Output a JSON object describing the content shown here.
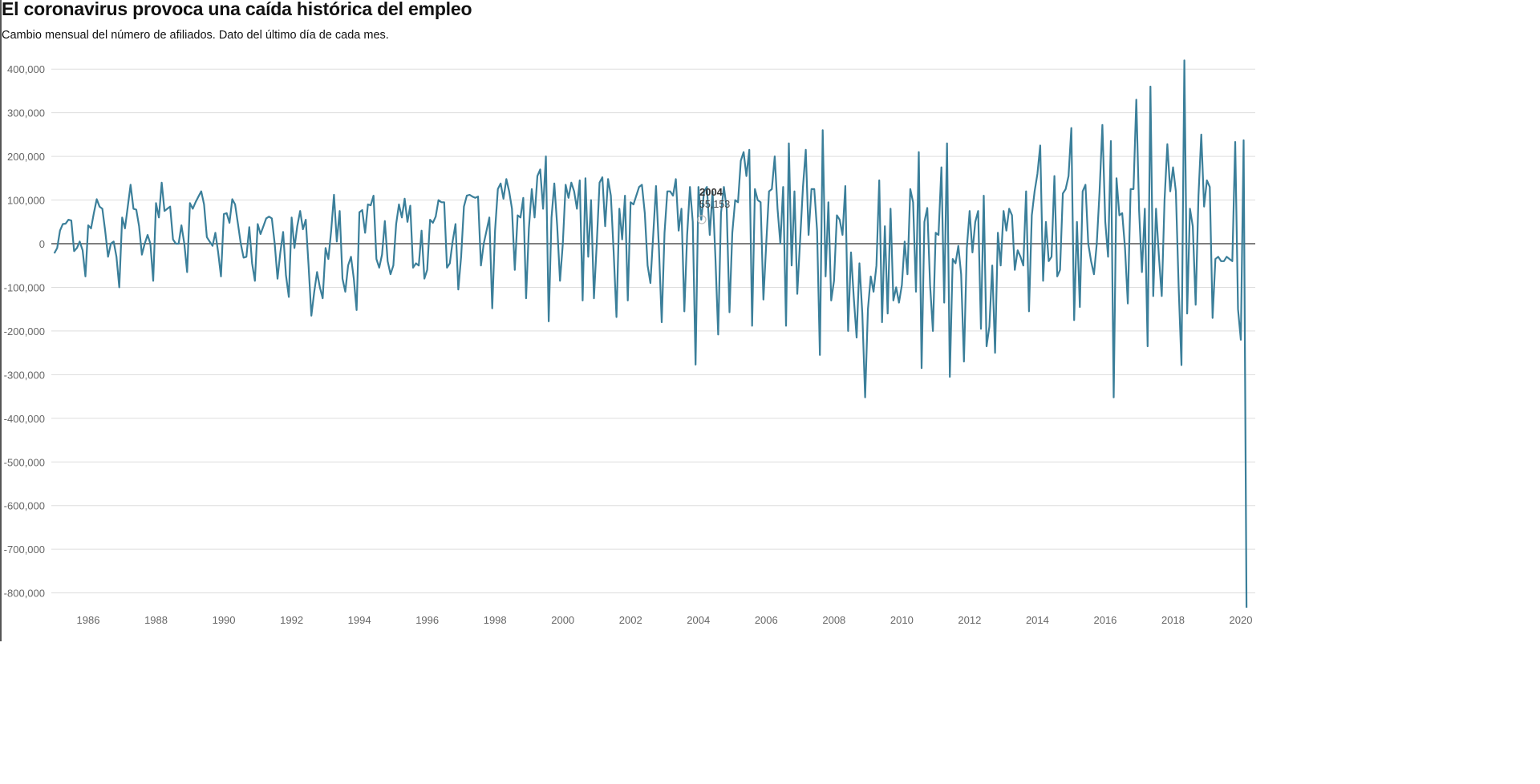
{
  "chart_data": {
    "type": "line",
    "title": "El coronavirus provoca una caída histórica del empleo",
    "subtitle": "Cambio mensual del número de afiliados. Dato del último día de cada mes.",
    "xlabel": "",
    "ylabel": "",
    "x_start": "1985-01",
    "x_frequency": "monthly",
    "xlim": [
      1985,
      2020.2
    ],
    "ylim": [
      -850000,
      430000
    ],
    "grid": true,
    "line_color": "#3b7f9a",
    "x_ticks": [
      "1986",
      "1988",
      "1990",
      "1992",
      "1994",
      "1996",
      "1998",
      "2000",
      "2002",
      "2004",
      "2006",
      "2008",
      "2010",
      "2012",
      "2014",
      "2016",
      "2018",
      "2020"
    ],
    "y_ticks": [
      "400,000",
      "300,000",
      "200,000",
      "100,000",
      "0",
      "-100,000",
      "-200,000",
      "-300,000",
      "-400,000",
      "-500,000",
      "-600,000",
      "-700,000",
      "-800,000"
    ],
    "tooltip": {
      "year": "2004",
      "value": "55,153"
    },
    "series": [
      {
        "values_thousands": [
          -22,
          -10,
          30,
          45,
          46,
          55,
          53,
          -17,
          -10,
          5,
          -15,
          -75,
          42,
          35,
          70,
          102,
          85,
          80,
          30,
          -30,
          0,
          5,
          -30,
          -100,
          60,
          35,
          85,
          135,
          80,
          78,
          40,
          -25,
          0,
          20,
          0,
          -85,
          93,
          60,
          140,
          75,
          80,
          85,
          10,
          0,
          0,
          42,
          0,
          -65,
          93,
          80,
          95,
          108,
          120,
          90,
          15,
          5,
          -5,
          25,
          -20,
          -75,
          68,
          70,
          48,
          102,
          90,
          45,
          0,
          -32,
          -30,
          38,
          -45,
          -85,
          45,
          22,
          40,
          58,
          62,
          58,
          0,
          -80,
          -20,
          27,
          -72,
          -122,
          60,
          -10,
          40,
          75,
          33,
          55,
          -50,
          -165,
          -110,
          -65,
          -100,
          -125,
          -10,
          -35,
          30,
          112,
          5,
          75,
          -80,
          -110,
          -50,
          -30,
          -80,
          -152,
          72,
          77,
          25,
          90,
          88,
          110,
          -35,
          -55,
          -25,
          52,
          -40,
          -70,
          -50,
          45,
          90,
          60,
          103,
          50,
          87,
          -55,
          -45,
          -50,
          30,
          -80,
          -60,
          55,
          48,
          62,
          100,
          95,
          95,
          -55,
          -45,
          5,
          45,
          -105,
          -30,
          85,
          110,
          112,
          108,
          105,
          108,
          -50,
          0,
          30,
          60,
          -148,
          30,
          125,
          138,
          103,
          148,
          120,
          80,
          -60,
          65,
          60,
          105,
          -125,
          35,
          125,
          60,
          155,
          170,
          80,
          200,
          -178,
          60,
          138,
          40,
          -85,
          0,
          135,
          105,
          140,
          120,
          80,
          145,
          -130,
          150,
          -30,
          100,
          -125,
          0,
          140,
          152,
          40,
          148,
          110,
          -20,
          -168,
          80,
          10,
          110,
          -130,
          95,
          90,
          110,
          130,
          135,
          70,
          -50,
          -90,
          20,
          132,
          -10,
          -180,
          25,
          120,
          120,
          110,
          148,
          30,
          80,
          -155,
          20,
          130,
          50,
          -277,
          130,
          55,
          120,
          130,
          20,
          120,
          -30,
          -208,
          70,
          130,
          80,
          -157,
          25,
          100,
          95,
          190,
          210,
          155,
          215,
          -188,
          125,
          100,
          95,
          -128,
          0,
          120,
          125,
          200,
          80,
          0,
          130,
          -188,
          230,
          -50,
          120,
          -115,
          10,
          130,
          215,
          20,
          125,
          125,
          30,
          -255,
          260,
          -75,
          95,
          -130,
          -85,
          65,
          55,
          20,
          132,
          -200,
          -20,
          -125,
          -215,
          -45,
          -160,
          -352,
          -150,
          -75,
          -110,
          -50,
          145,
          -180,
          40,
          -160,
          80,
          -130,
          -100,
          -135,
          -95,
          5,
          -70,
          125,
          95,
          -110,
          210,
          -285,
          50,
          82,
          -95,
          -200,
          25,
          20,
          175,
          -135,
          230,
          -305,
          -35,
          -45,
          -5,
          -70,
          -270,
          -10,
          75,
          -20,
          50,
          75,
          -195,
          110,
          -235,
          -190,
          -50,
          -250,
          25,
          -50,
          75,
          30,
          80,
          65,
          -60,
          -15,
          -30,
          -50,
          120,
          -155,
          65,
          120,
          160,
          225,
          -85,
          50,
          -40,
          -30,
          155,
          -75,
          -60,
          115,
          125,
          155,
          265,
          -175,
          50,
          -145,
          120,
          135,
          0,
          -40,
          -70,
          0,
          120,
          272,
          50,
          -30,
          235,
          -352,
          150,
          65,
          70,
          -10,
          -137,
          125,
          125,
          330,
          75,
          -65,
          80,
          -235,
          360,
          -120,
          80,
          -30,
          -120,
          100,
          228,
          120,
          175,
          120,
          -100,
          -278,
          420,
          -160,
          80,
          40,
          -140,
          110,
          250,
          85,
          145,
          130,
          -170,
          -35,
          -30,
          -40,
          -40,
          -30,
          -35,
          -40,
          233,
          -150,
          -220,
          237,
          -834
        ]
      }
    ]
  }
}
